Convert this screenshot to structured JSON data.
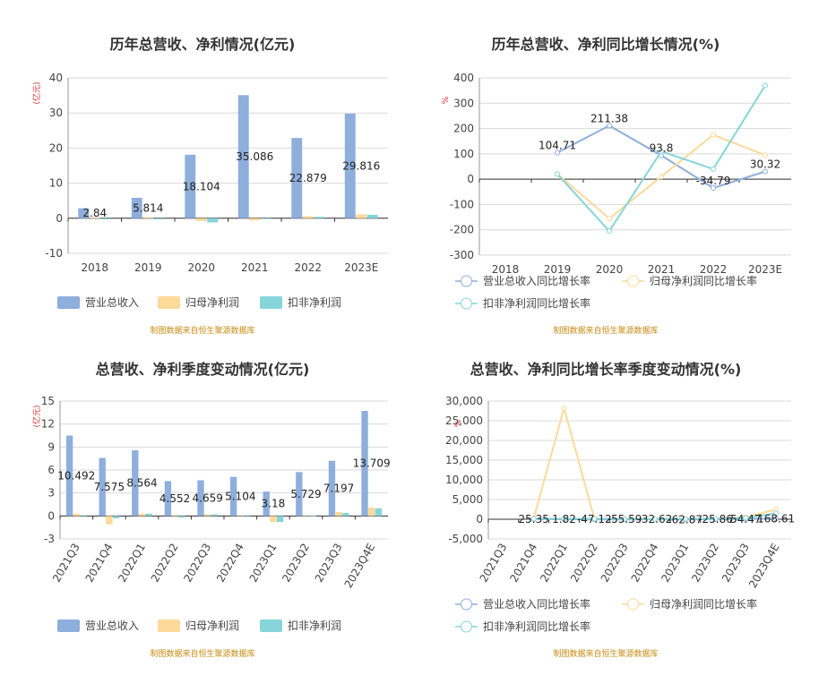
{
  "colors": {
    "revenue": "#8eaedc",
    "net_profit": "#fdd99a",
    "deducted_profit": "#85d5d9",
    "axis": "#333333",
    "grid": "#d9d9d9",
    "unit": "#e0282a",
    "source": "#c88a10"
  },
  "source_note": "制图数据来自恒生聚源数据库",
  "chart_data": [
    {
      "type": "bar",
      "title": "历年总营收、净利情况(亿元)",
      "unit_label": "(亿元)",
      "categories": [
        "2018",
        "2019",
        "2020",
        "2021",
        "2022",
        "2023E"
      ],
      "ylim": [
        -10,
        40
      ],
      "yticks": [
        -10,
        0,
        10,
        20,
        30,
        40
      ],
      "grid": true,
      "legend_position": "bottom",
      "series": [
        {
          "name": "营业总收入",
          "values": [
            2.84,
            5.814,
            18.104,
            35.086,
            22.879,
            29.816
          ],
          "labels": [
            "2.84",
            "5.814",
            "18.104",
            "35.086",
            "22.879",
            "29.816"
          ]
        },
        {
          "name": "归母净利润",
          "values": [
            0.2,
            0.3,
            -0.8,
            -0.6,
            0.6,
            1.1
          ]
        },
        {
          "name": "扣非净利润",
          "values": [
            -0.3,
            -0.3,
            -1.2,
            -0.2,
            0.4,
            1.0
          ]
        }
      ]
    },
    {
      "type": "line",
      "title": "历年总营收、净利同比增长情况(%)",
      "unit_label": "%",
      "categories": [
        "2018",
        "2019",
        "2020",
        "2021",
        "2022",
        "2023E"
      ],
      "ylim": [
        -300,
        400
      ],
      "yticks": [
        -300,
        -200,
        -100,
        0,
        100,
        200,
        300,
        400
      ],
      "grid": true,
      "legend_position": "bottom",
      "series": [
        {
          "name": "营业总收入同比增长率",
          "values": [
            null,
            104.71,
            211.38,
            93.8,
            -34.79,
            30.32
          ],
          "labels": [
            "",
            "104.71",
            "211.38",
            "93.8",
            "-34.79",
            "30.32"
          ]
        },
        {
          "name": "归母净利润同比增长率",
          "values": [
            null,
            20,
            -155,
            10,
            175,
            95
          ]
        },
        {
          "name": "扣非净利润同比增长率",
          "values": [
            null,
            20,
            -205,
            110,
            40,
            370
          ]
        }
      ]
    },
    {
      "type": "bar",
      "title": "总营收、净利季度变动情况(亿元)",
      "unit_label": "(亿元)",
      "categories": [
        "2021Q3",
        "2021Q4",
        "2022Q1",
        "2022Q2",
        "2022Q3",
        "2022Q4",
        "2023Q1",
        "2023Q2",
        "2023Q3",
        "2023Q4E"
      ],
      "ylim": [
        -3,
        15
      ],
      "yticks": [
        -3,
        0,
        3,
        6,
        9,
        12,
        15
      ],
      "grid": true,
      "legend_position": "bottom",
      "series": [
        {
          "name": "营业总收入",
          "values": [
            10.492,
            7.575,
            8.564,
            4.552,
            4.659,
            5.104,
            3.18,
            5.729,
            7.197,
            13.709
          ],
          "labels": [
            "10.492",
            "7.575",
            "8.564",
            "4.552",
            "4.659",
            "5.104",
            "3.18",
            "5.729",
            "7.197",
            "13.709"
          ]
        },
        {
          "name": "归母净利润",
          "values": [
            0.3,
            -1.1,
            0.3,
            0.1,
            0.2,
            0.1,
            -0.8,
            0.1,
            0.5,
            1.1
          ]
        },
        {
          "name": "扣非净利润",
          "values": [
            0.1,
            -0.3,
            0.3,
            -0.2,
            0.2,
            0.1,
            -0.8,
            0.05,
            0.4,
            1.0
          ]
        }
      ]
    },
    {
      "type": "line",
      "title": "总营收、净利同比增长率季度变动情况(%)",
      "unit_label": "%",
      "categories": [
        "2021Q3",
        "2021Q4",
        "2022Q1",
        "2022Q2",
        "2022Q3",
        "2022Q4",
        "2023Q1",
        "2023Q2",
        "2023Q3",
        "2023Q4E"
      ],
      "ylim": [
        -5000,
        30000
      ],
      "yticks": [
        -5000,
        0,
        5000,
        10000,
        15000,
        20000,
        25000,
        30000
      ],
      "ytick_labels": [
        "-5,000",
        "0",
        "5,000",
        "10,000",
        "15,000",
        "20,000",
        "25,000",
        "30,000"
      ],
      "grid": true,
      "legend_position": "bottom",
      "series": [
        {
          "name": "营业总收入同比增长率",
          "values": [
            null,
            25.35,
            1.82,
            -47.12,
            -55.59,
            -32.62,
            -62.87,
            -25.86,
            54.47,
            168.61
          ],
          "labels": [
            "",
            "25.35",
            "1.82",
            "-47.12",
            "-55.59",
            "-32.62",
            "-62.87",
            "-25.86",
            "54.47",
            "168.61"
          ]
        },
        {
          "name": "归母净利润同比增长率",
          "values": [
            null,
            300,
            28200,
            200,
            100,
            50,
            150,
            150,
            500,
            2500
          ]
        },
        {
          "name": "扣非净利润同比增长率",
          "values": [
            null,
            100,
            100,
            100,
            50,
            50,
            100,
            100,
            300,
            1500
          ]
        }
      ]
    }
  ]
}
